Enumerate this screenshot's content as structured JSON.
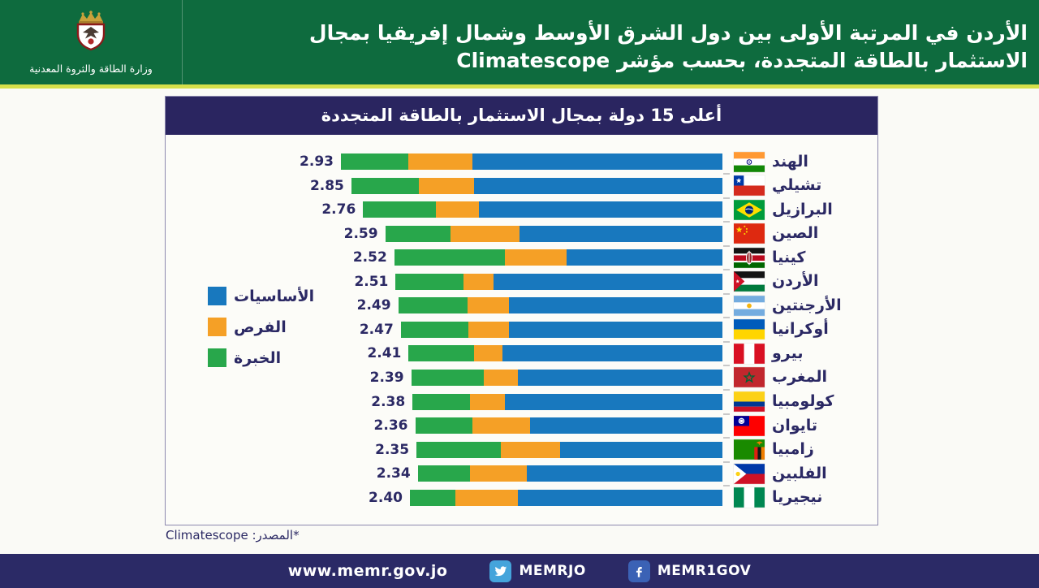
{
  "header": {
    "title_line1": "الأردن في المرتبة الأولى بين دول الشرق الأوسط وشمال إفريقيا بمجال",
    "title_line2": "الاستثمار بالطاقة المتجددة، بحسب مؤشر Climatescope",
    "ministry_name": "وزارة الطاقة والثروة المعدنية"
  },
  "theme": {
    "header_green": "#0E6B3E",
    "accent_yellow": "#D5DF4A",
    "panel_navy": "#2A2560",
    "footer_navy": "#2B2A66",
    "text_navy": "#2B2964",
    "card_background": "#FCFCF8",
    "page_background": "#FAFAF6",
    "twitter_blue": "#45A4DB",
    "facebook_blue": "#3B62B5"
  },
  "chart_data": {
    "type": "bar",
    "orientation": "horizontal-rtl-stacked",
    "title": "أعلى 15 دولة بمجال الاستثمار بالطاقة المتجددة",
    "source_note": "*المصدر: Climatescope",
    "value_range": [
      0,
      3
    ],
    "legend_position": "middle-left",
    "legend_items": [
      {
        "key": "fundamentals",
        "label": "الأساسيات"
      },
      {
        "key": "opportunities",
        "label": "الفرص"
      },
      {
        "key": "experience",
        "label": "الخبرة"
      }
    ],
    "colors": {
      "fundamentals": "#1878BE",
      "opportunities": "#F5A026",
      "experience": "#28A74B"
    },
    "rows": [
      {
        "country": "الهند",
        "country_en": "india",
        "flag": "india",
        "total": 2.93,
        "label": "2.93",
        "fundamentals": 1.92,
        "opportunities": 0.49,
        "experience": 0.52
      },
      {
        "country": "تشيلي",
        "country_en": "chile",
        "flag": "chile",
        "total": 2.85,
        "label": "2.85",
        "fundamentals": 1.91,
        "opportunities": 0.42,
        "experience": 0.52
      },
      {
        "country": "البرازيل",
        "country_en": "brazil",
        "flag": "brazil",
        "total": 2.76,
        "label": "2.76",
        "fundamentals": 1.87,
        "opportunities": 0.33,
        "experience": 0.56
      },
      {
        "country": "الصين",
        "country_en": "china",
        "flag": "china",
        "total": 2.59,
        "label": "2.59",
        "fundamentals": 1.56,
        "opportunities": 0.53,
        "experience": 0.5
      },
      {
        "country": "كينيا",
        "country_en": "kenya",
        "flag": "kenya",
        "total": 2.52,
        "label": "2.52",
        "fundamentals": 1.2,
        "opportunities": 0.47,
        "experience": 0.85
      },
      {
        "country": "الأردن",
        "country_en": "jordan",
        "flag": "jordan",
        "total": 2.51,
        "label": "2.51",
        "fundamentals": 1.76,
        "opportunities": 0.23,
        "experience": 0.52
      },
      {
        "country": "الأرجنتين",
        "country_en": "argentina",
        "flag": "argentina",
        "total": 2.49,
        "label": "2.49",
        "fundamentals": 1.64,
        "opportunities": 0.32,
        "experience": 0.53
      },
      {
        "country": "أوكرانيا",
        "country_en": "ukraine",
        "flag": "ukraine",
        "total": 2.47,
        "label": "2.47",
        "fundamentals": 1.64,
        "opportunities": 0.31,
        "experience": 0.52
      },
      {
        "country": "بيرو",
        "country_en": "peru",
        "flag": "peru",
        "total": 2.41,
        "label": "2.41",
        "fundamentals": 1.69,
        "opportunities": 0.22,
        "experience": 0.5
      },
      {
        "country": "المغرب",
        "country_en": "morocco",
        "flag": "morocco",
        "total": 2.39,
        "label": "2.39",
        "fundamentals": 1.57,
        "opportunities": 0.26,
        "experience": 0.56
      },
      {
        "country": "كولومبيا",
        "country_en": "colombia",
        "flag": "colombia",
        "total": 2.38,
        "label": "2.38",
        "fundamentals": 1.67,
        "opportunities": 0.27,
        "experience": 0.44
      },
      {
        "country": "تايوان",
        "country_en": "taiwan",
        "flag": "taiwan",
        "total": 2.36,
        "label": "2.36",
        "fundamentals": 1.48,
        "opportunities": 0.44,
        "experience": 0.44
      },
      {
        "country": "زامبيا",
        "country_en": "zambia",
        "flag": "zambia",
        "total": 2.35,
        "label": "2.35",
        "fundamentals": 1.25,
        "opportunities": 0.45,
        "experience": 0.65
      },
      {
        "country": "الفلبين",
        "country_en": "philippines",
        "flag": "philippines",
        "total": 2.34,
        "label": "2.34",
        "fundamentals": 1.5,
        "opportunities": 0.44,
        "experience": 0.4
      },
      {
        "country": "نيجيريا",
        "country_en": "nigeria",
        "flag": "nigeria",
        "total": 2.4,
        "label": "2.40",
        "fundamentals": 1.57,
        "opportunities": 0.48,
        "experience": 0.35
      }
    ]
  },
  "footer": {
    "website": "www.memr.gov.jo",
    "twitter_handle": "MEMRJO",
    "facebook_handle": "MEMR1GOV"
  }
}
